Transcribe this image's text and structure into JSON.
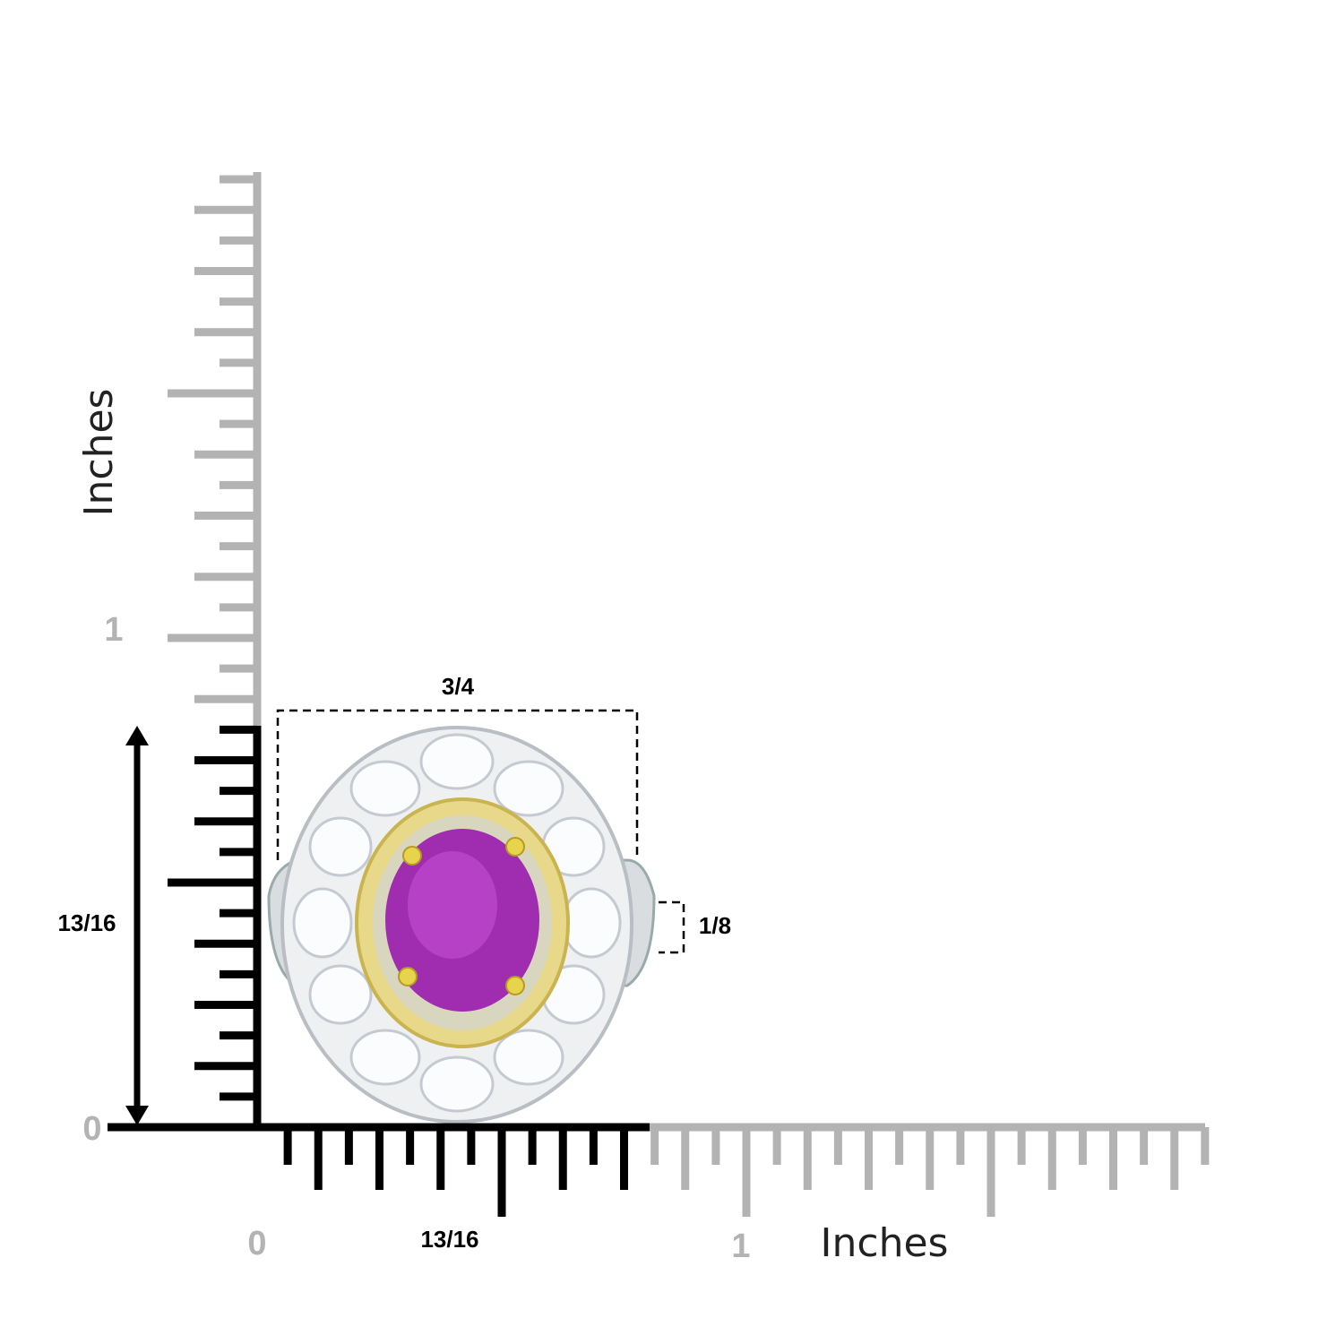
{
  "ruler": {
    "y_axis": {
      "unit": "Inches",
      "labels": [
        "1",
        "0"
      ],
      "measure": "13/16"
    },
    "x_axis": {
      "unit": "Inches",
      "labels": [
        "0",
        "1"
      ],
      "measure": "13/16"
    }
  },
  "dimensions": {
    "width": "3/4",
    "band": "1/8"
  }
}
